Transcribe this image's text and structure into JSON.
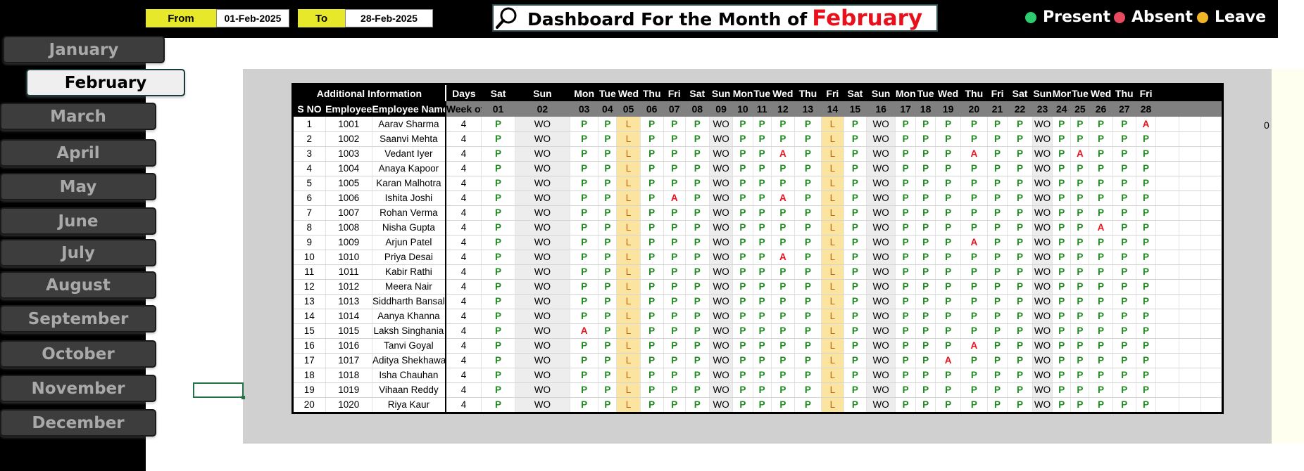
{
  "header": {
    "from_label": "From",
    "from_value": "01-Feb-2025",
    "to_label": "To",
    "to_value": "28-Feb-2025",
    "title_prefix": "Dashboard For the Month of",
    "title_month": "February"
  },
  "legend": [
    {
      "label": "Present",
      "color": "#2ecc71"
    },
    {
      "label": "Absent",
      "color": "#e84a5f"
    },
    {
      "label": "Leave",
      "color": "#f0b429"
    }
  ],
  "months": [
    "January",
    "February",
    "March",
    "April",
    "May",
    "June",
    "July",
    "August",
    "September",
    "October",
    "November",
    "December"
  ],
  "active_month": "February",
  "side_value": "0",
  "table": {
    "info_header": "Additional Information",
    "days_header": "Days",
    "col_sno": "S NO",
    "col_emp_id": "Employee ID",
    "col_emp_name": "Employee Name",
    "col_weekoff": "Week off",
    "days": [
      {
        "dow": "Sat",
        "date": "01"
      },
      {
        "dow": "Sun",
        "date": "02"
      },
      {
        "dow": "Mon",
        "date": "03"
      },
      {
        "dow": "Tue",
        "date": "04"
      },
      {
        "dow": "Wed",
        "date": "05"
      },
      {
        "dow": "Thu",
        "date": "06"
      },
      {
        "dow": "Fri",
        "date": "07"
      },
      {
        "dow": "Sat",
        "date": "08"
      },
      {
        "dow": "Sun",
        "date": "09"
      },
      {
        "dow": "Mon",
        "date": "10"
      },
      {
        "dow": "Tue",
        "date": "11"
      },
      {
        "dow": "Wed",
        "date": "12"
      },
      {
        "dow": "Thu",
        "date": "13"
      },
      {
        "dow": "Fri",
        "date": "14"
      },
      {
        "dow": "Sat",
        "date": "15"
      },
      {
        "dow": "Sun",
        "date": "16"
      },
      {
        "dow": "Mon",
        "date": "17"
      },
      {
        "dow": "Tue",
        "date": "18"
      },
      {
        "dow": "Wed",
        "date": "19"
      },
      {
        "dow": "Thu",
        "date": "20"
      },
      {
        "dow": "Fri",
        "date": "21"
      },
      {
        "dow": "Sat",
        "date": "22"
      },
      {
        "dow": "Sun",
        "date": "23"
      },
      {
        "dow": "Mon",
        "date": "24"
      },
      {
        "dow": "Tue",
        "date": "25"
      },
      {
        "dow": "Wed",
        "date": "26"
      },
      {
        "dow": "Thu",
        "date": "27"
      },
      {
        "dow": "Fri",
        "date": "28"
      },
      {
        "dow": "",
        "date": ""
      },
      {
        "dow": "",
        "date": ""
      },
      {
        "dow": "",
        "date": ""
      }
    ],
    "employees": [
      {
        "sno": "1",
        "id": "1001",
        "name": "Aarav Sharma",
        "weekoff": "4",
        "att": [
          "P",
          "WO",
          "P",
          "P",
          "L",
          "P",
          "P",
          "P",
          "WO",
          "P",
          "P",
          "P",
          "P",
          "L",
          "P",
          "WO",
          "P",
          "P",
          "P",
          "P",
          "P",
          "P",
          "WO",
          "P",
          "P",
          "P",
          "P",
          "A",
          "",
          "",
          ""
        ]
      },
      {
        "sno": "2",
        "id": "1002",
        "name": "Saanvi Mehta",
        "weekoff": "4",
        "att": [
          "P",
          "WO",
          "P",
          "P",
          "L",
          "P",
          "P",
          "P",
          "WO",
          "P",
          "P",
          "P",
          "P",
          "L",
          "P",
          "WO",
          "P",
          "P",
          "P",
          "P",
          "P",
          "P",
          "WO",
          "P",
          "P",
          "P",
          "P",
          "P",
          "",
          "",
          ""
        ]
      },
      {
        "sno": "3",
        "id": "1003",
        "name": "Vedant Iyer",
        "weekoff": "4",
        "att": [
          "P",
          "WO",
          "P",
          "P",
          "L",
          "P",
          "P",
          "P",
          "WO",
          "P",
          "P",
          "A",
          "P",
          "L",
          "P",
          "WO",
          "P",
          "P",
          "P",
          "A",
          "P",
          "P",
          "WO",
          "P",
          "A",
          "P",
          "P",
          "P",
          "",
          "",
          ""
        ]
      },
      {
        "sno": "4",
        "id": "1004",
        "name": "Anaya Kapoor",
        "weekoff": "4",
        "att": [
          "P",
          "WO",
          "P",
          "P",
          "L",
          "P",
          "P",
          "P",
          "WO",
          "P",
          "P",
          "P",
          "P",
          "L",
          "P",
          "WO",
          "P",
          "P",
          "P",
          "P",
          "P",
          "P",
          "WO",
          "P",
          "P",
          "P",
          "P",
          "P",
          "",
          "",
          ""
        ]
      },
      {
        "sno": "5",
        "id": "1005",
        "name": "Karan Malhotra",
        "weekoff": "4",
        "att": [
          "P",
          "WO",
          "P",
          "P",
          "L",
          "P",
          "P",
          "P",
          "WO",
          "P",
          "P",
          "P",
          "P",
          "L",
          "P",
          "WO",
          "P",
          "P",
          "P",
          "P",
          "P",
          "P",
          "WO",
          "P",
          "P",
          "P",
          "P",
          "P",
          "",
          "",
          ""
        ]
      },
      {
        "sno": "6",
        "id": "1006",
        "name": "Ishita Joshi",
        "weekoff": "4",
        "att": [
          "P",
          "WO",
          "P",
          "P",
          "L",
          "P",
          "A",
          "P",
          "WO",
          "P",
          "P",
          "A",
          "P",
          "L",
          "P",
          "WO",
          "P",
          "P",
          "P",
          "P",
          "P",
          "P",
          "WO",
          "P",
          "P",
          "P",
          "P",
          "P",
          "",
          "",
          ""
        ]
      },
      {
        "sno": "7",
        "id": "1007",
        "name": "Rohan Verma",
        "weekoff": "4",
        "att": [
          "P",
          "WO",
          "P",
          "P",
          "L",
          "P",
          "P",
          "P",
          "WO",
          "P",
          "P",
          "P",
          "P",
          "L",
          "P",
          "WO",
          "P",
          "P",
          "P",
          "P",
          "P",
          "P",
          "WO",
          "P",
          "P",
          "P",
          "P",
          "P",
          "",
          "",
          ""
        ]
      },
      {
        "sno": "8",
        "id": "1008",
        "name": "Nisha Gupta",
        "weekoff": "4",
        "att": [
          "P",
          "WO",
          "P",
          "P",
          "L",
          "P",
          "P",
          "P",
          "WO",
          "P",
          "P",
          "P",
          "P",
          "L",
          "P",
          "WO",
          "P",
          "P",
          "P",
          "P",
          "P",
          "P",
          "WO",
          "P",
          "P",
          "A",
          "P",
          "P",
          "",
          "",
          ""
        ]
      },
      {
        "sno": "9",
        "id": "1009",
        "name": "Arjun Patel",
        "weekoff": "4",
        "att": [
          "P",
          "WO",
          "P",
          "P",
          "L",
          "P",
          "P",
          "P",
          "WO",
          "P",
          "P",
          "P",
          "P",
          "L",
          "P",
          "WO",
          "P",
          "P",
          "P",
          "A",
          "P",
          "P",
          "WO",
          "P",
          "P",
          "P",
          "P",
          "P",
          "",
          "",
          ""
        ]
      },
      {
        "sno": "10",
        "id": "1010",
        "name": "Priya Desai",
        "weekoff": "4",
        "att": [
          "P",
          "WO",
          "P",
          "P",
          "L",
          "P",
          "P",
          "P",
          "WO",
          "P",
          "P",
          "A",
          "P",
          "L",
          "P",
          "WO",
          "P",
          "P",
          "P",
          "P",
          "P",
          "P",
          "WO",
          "P",
          "P",
          "P",
          "P",
          "P",
          "",
          "",
          ""
        ]
      },
      {
        "sno": "11",
        "id": "1011",
        "name": "Kabir Rathi",
        "weekoff": "4",
        "att": [
          "P",
          "WO",
          "P",
          "P",
          "L",
          "P",
          "P",
          "P",
          "WO",
          "P",
          "P",
          "P",
          "P",
          "L",
          "P",
          "WO",
          "P",
          "P",
          "P",
          "P",
          "P",
          "P",
          "WO",
          "P",
          "P",
          "P",
          "P",
          "P",
          "",
          "",
          ""
        ]
      },
      {
        "sno": "12",
        "id": "1012",
        "name": "Meera Nair",
        "weekoff": "4",
        "att": [
          "P",
          "WO",
          "P",
          "P",
          "L",
          "P",
          "P",
          "P",
          "WO",
          "P",
          "P",
          "P",
          "P",
          "L",
          "P",
          "WO",
          "P",
          "P",
          "P",
          "P",
          "P",
          "P",
          "WO",
          "P",
          "P",
          "P",
          "P",
          "P",
          "",
          "",
          ""
        ]
      },
      {
        "sno": "13",
        "id": "1013",
        "name": "Siddharth Bansal",
        "weekoff": "4",
        "att": [
          "P",
          "WO",
          "P",
          "P",
          "L",
          "P",
          "P",
          "P",
          "WO",
          "P",
          "P",
          "P",
          "P",
          "L",
          "P",
          "WO",
          "P",
          "P",
          "P",
          "P",
          "P",
          "P",
          "WO",
          "P",
          "P",
          "P",
          "P",
          "P",
          "",
          "",
          ""
        ]
      },
      {
        "sno": "14",
        "id": "1014",
        "name": "Aanya Khanna",
        "weekoff": "4",
        "att": [
          "P",
          "WO",
          "P",
          "P",
          "L",
          "P",
          "P",
          "P",
          "WO",
          "P",
          "P",
          "P",
          "P",
          "L",
          "P",
          "WO",
          "P",
          "P",
          "P",
          "P",
          "P",
          "P",
          "WO",
          "P",
          "P",
          "P",
          "P",
          "P",
          "",
          "",
          ""
        ]
      },
      {
        "sno": "15",
        "id": "1015",
        "name": "Laksh Singhania",
        "weekoff": "4",
        "att": [
          "P",
          "WO",
          "A",
          "P",
          "L",
          "P",
          "P",
          "P",
          "WO",
          "P",
          "P",
          "P",
          "P",
          "L",
          "P",
          "WO",
          "P",
          "P",
          "P",
          "P",
          "P",
          "P",
          "WO",
          "P",
          "P",
          "P",
          "P",
          "P",
          "",
          "",
          ""
        ]
      },
      {
        "sno": "16",
        "id": "1016",
        "name": "Tanvi Goyal",
        "weekoff": "4",
        "att": [
          "P",
          "WO",
          "P",
          "P",
          "L",
          "P",
          "P",
          "P",
          "WO",
          "P",
          "P",
          "P",
          "P",
          "L",
          "P",
          "WO",
          "P",
          "P",
          "P",
          "A",
          "P",
          "P",
          "WO",
          "P",
          "P",
          "P",
          "P",
          "P",
          "",
          "",
          ""
        ]
      },
      {
        "sno": "17",
        "id": "1017",
        "name": "Aditya Shekhawat",
        "weekoff": "4",
        "att": [
          "P",
          "WO",
          "P",
          "P",
          "L",
          "P",
          "P",
          "P",
          "WO",
          "P",
          "P",
          "P",
          "P",
          "L",
          "P",
          "WO",
          "P",
          "P",
          "A",
          "P",
          "P",
          "P",
          "WO",
          "P",
          "P",
          "P",
          "P",
          "P",
          "",
          "",
          ""
        ]
      },
      {
        "sno": "18",
        "id": "1018",
        "name": "Isha Chauhan",
        "weekoff": "4",
        "att": [
          "P",
          "WO",
          "P",
          "P",
          "L",
          "P",
          "P",
          "P",
          "WO",
          "P",
          "P",
          "P",
          "P",
          "L",
          "P",
          "WO",
          "P",
          "P",
          "P",
          "P",
          "P",
          "P",
          "WO",
          "P",
          "P",
          "P",
          "P",
          "P",
          "",
          "",
          ""
        ]
      },
      {
        "sno": "19",
        "id": "1019",
        "name": "Vihaan Reddy",
        "weekoff": "4",
        "att": [
          "P",
          "WO",
          "P",
          "P",
          "L",
          "P",
          "P",
          "P",
          "WO",
          "P",
          "P",
          "P",
          "P",
          "L",
          "P",
          "WO",
          "P",
          "P",
          "P",
          "P",
          "P",
          "P",
          "WO",
          "P",
          "P",
          "P",
          "P",
          "P",
          "",
          "",
          ""
        ]
      },
      {
        "sno": "20",
        "id": "1020",
        "name": "Riya Kaur",
        "weekoff": "4",
        "att": [
          "P",
          "WO",
          "P",
          "P",
          "L",
          "P",
          "P",
          "P",
          "WO",
          "P",
          "P",
          "P",
          "P",
          "L",
          "P",
          "WO",
          "P",
          "P",
          "P",
          "P",
          "P",
          "P",
          "WO",
          "P",
          "P",
          "P",
          "P",
          "P",
          "",
          "",
          ""
        ]
      }
    ]
  }
}
